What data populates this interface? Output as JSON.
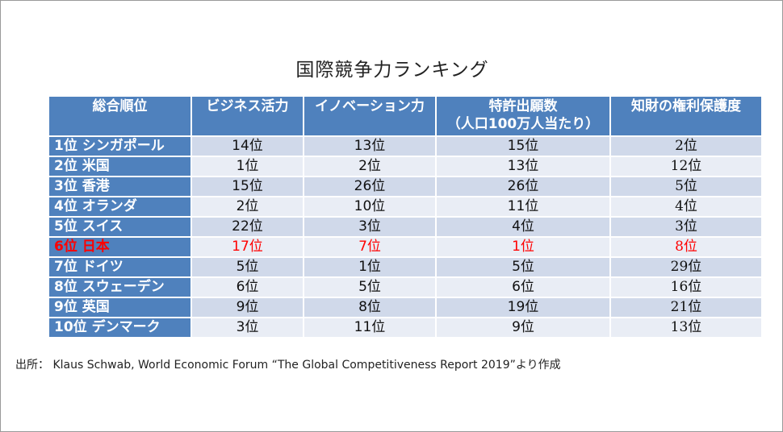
{
  "chart_data": {
    "type": "table",
    "title": "国際競争力ランキング",
    "columns": [
      "総合順位",
      "ビジネス活力",
      "イノベーション力",
      "特許出願数",
      "知財の権利保護度"
    ],
    "column_subtitles": [
      "",
      "",
      "",
      "（人口100万人当たり）",
      ""
    ],
    "rows": [
      {
        "rank": "1位 シンガポール",
        "values": [
          "14位",
          "13位",
          "15位",
          "2位"
        ]
      },
      {
        "rank": "2位 米国",
        "values": [
          "1位",
          "2位",
          "13位",
          "12位"
        ]
      },
      {
        "rank": "3位 香港",
        "values": [
          "15位",
          "26位",
          "26位",
          "5位"
        ]
      },
      {
        "rank": "4位 オランダ",
        "values": [
          "2位",
          "10位",
          "11位",
          "4位"
        ]
      },
      {
        "rank": "5位 スイス",
        "values": [
          "22位",
          "3位",
          "4位",
          "3位"
        ]
      },
      {
        "rank": "6位 日本",
        "values": [
          "17位",
          "7位",
          "1位",
          "8位"
        ],
        "highlight": true
      },
      {
        "rank": "7位 ドイツ",
        "values": [
          "5位",
          "1位",
          "5位",
          "29位"
        ]
      },
      {
        "rank": "8位 スウェーデン",
        "values": [
          "6位",
          "5位",
          "6位",
          "16位"
        ]
      },
      {
        "rank": "9位 英国",
        "values": [
          "9位",
          "8位",
          "19位",
          "21位"
        ]
      },
      {
        "rank": "10位 デンマーク",
        "values": [
          "3位",
          "11位",
          "9位",
          "13位"
        ]
      }
    ],
    "source": "出所： Klaus Schwab, World Economic Forum “The Global Competitiveness Report 2019”より作成"
  },
  "colors": {
    "header_bg": "#4f81bd",
    "row_odd": "#d0d9ea",
    "row_even": "#e9edf5",
    "highlight_text": "#ff0000"
  }
}
